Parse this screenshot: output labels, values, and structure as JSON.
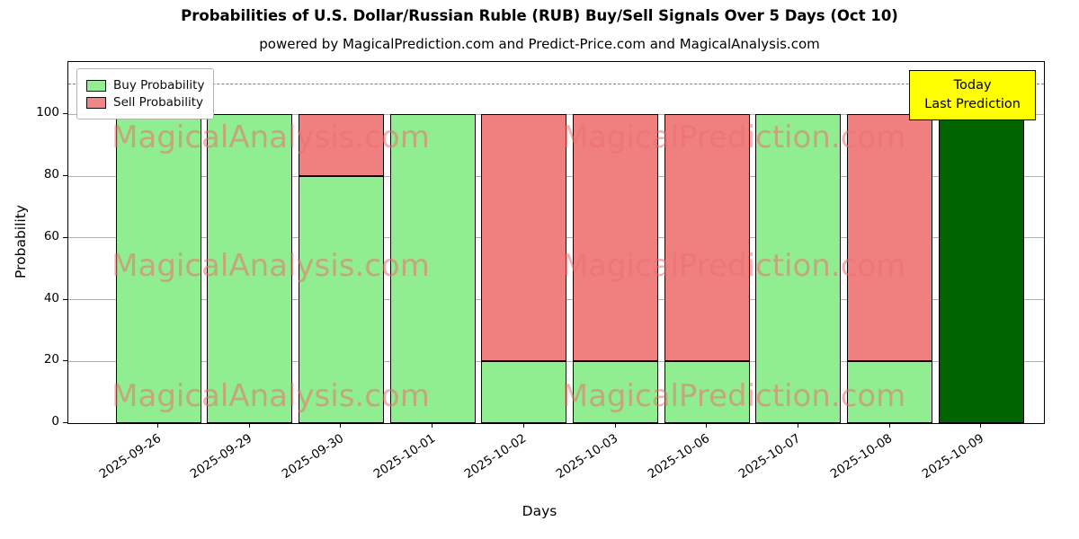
{
  "figure": {
    "title": "Probabilities of U.S. Dollar/Russian Ruble (RUB) Buy/Sell Signals Over 5 Days (Oct 10)",
    "subtitle": "powered by MagicalPrediction.com and Predict-Price.com and MagicalAnalysis.com",
    "xlabel": "Days",
    "ylabel": "Probability"
  },
  "chart_data": {
    "type": "bar",
    "stacked": true,
    "title": "Probabilities of U.S. Dollar/Russian Ruble (RUB) Buy/Sell Signals Over 5 Days (Oct 10)",
    "subtitle": "powered by MagicalPrediction.com and Predict-Price.com and MagicalAnalysis.com",
    "xlabel": "Days",
    "ylabel": "Probability",
    "ylim": [
      0,
      117
    ],
    "yticks": [
      0,
      20,
      40,
      60,
      80,
      100
    ],
    "grid": "horizontal",
    "categories": [
      "2025-09-26",
      "2025-09-29",
      "2025-09-30",
      "2025-10-01",
      "2025-10-02",
      "2025-10-03",
      "2025-10-06",
      "2025-10-07",
      "2025-10-08",
      "2025-10-09"
    ],
    "series": [
      {
        "name": "Buy Probability",
        "color": "#90EE90",
        "values": [
          100,
          100,
          80,
          100,
          20,
          20,
          20,
          100,
          20,
          100
        ]
      },
      {
        "name": "Sell Probability",
        "color": "#F08080",
        "values": [
          0,
          0,
          20,
          0,
          80,
          80,
          80,
          0,
          80,
          0
        ]
      }
    ],
    "special_bars": [
      {
        "index": 9,
        "color": "#006400",
        "label": "Today / Last Prediction"
      }
    ],
    "threshold_line": {
      "y": 110,
      "style": "dashed",
      "color": "#7f7f7f"
    },
    "legend": {
      "position": "upper left",
      "entries": [
        "Buy Probability",
        "Sell Probability"
      ]
    },
    "annotation": {
      "lines": [
        "Today",
        "Last Prediction"
      ],
      "bg_color": "#FFFF00"
    },
    "watermarks": {
      "texts": [
        "MagicalAnalysis.com",
        "MagicalPrediction.com"
      ],
      "color": "#F08080"
    },
    "bar_edge_color": "#000000"
  }
}
